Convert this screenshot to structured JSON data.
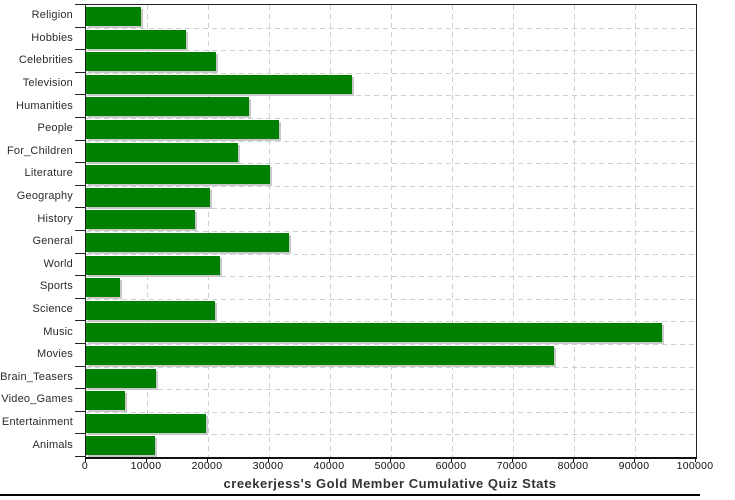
{
  "chart_data": {
    "type": "bar",
    "orientation": "horizontal",
    "title": "creekerjess's Gold Member Cumulative Quiz Stats",
    "categories": [
      "Religion",
      "Hobbies",
      "Celebrities",
      "Television",
      "Humanities",
      "People",
      "For_Children",
      "Literature",
      "Geography",
      "History",
      "General",
      "World",
      "Sports",
      "Science",
      "Music",
      "Movies",
      "Brain_Teasers",
      "Video_Games",
      "Entertainment",
      "Animals"
    ],
    "values": [
      9000,
      16400,
      21300,
      43600,
      26700,
      31700,
      24900,
      30200,
      20300,
      17900,
      33200,
      21900,
      5500,
      21200,
      94400,
      76700,
      11400,
      6400,
      19600,
      11300
    ],
    "xlabel": "",
    "ylabel": "",
    "xlim": [
      0,
      100000
    ],
    "x_ticks": [
      0,
      10000,
      20000,
      30000,
      40000,
      50000,
      60000,
      70000,
      80000,
      90000,
      100000
    ],
    "grid": "dashed",
    "legend": "none",
    "colors": {
      "bar": "#008000",
      "bar_shadow": "#c9c9c9",
      "gridline": "#ccd2d2",
      "axis": "#222222",
      "text": "#2b2b2b",
      "title_text": "#333333"
    }
  }
}
